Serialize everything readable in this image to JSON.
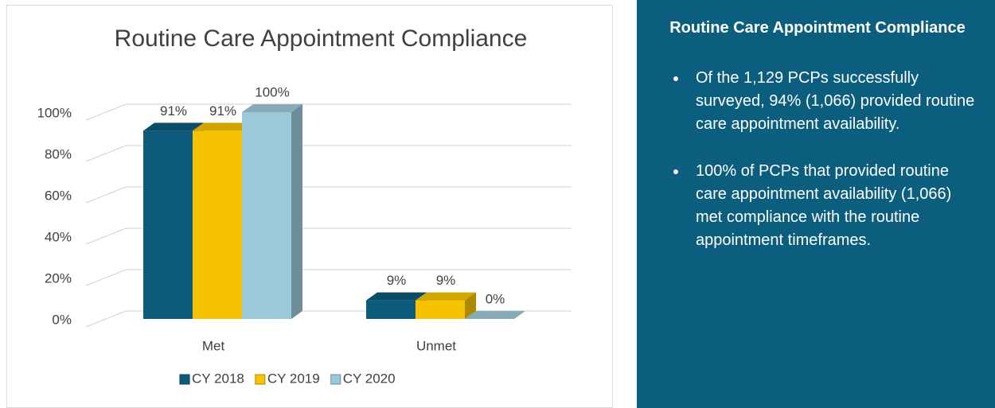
{
  "chart_data": {
    "type": "bar",
    "title": "Routine Care Appointment Compliance",
    "categories": [
      "Met",
      "Unmet"
    ],
    "series": [
      {
        "name": "CY 2018",
        "color": "#0d5a7a",
        "values": [
          91,
          9
        ],
        "value_labels": [
          "91%",
          "9%"
        ]
      },
      {
        "name": "CY 2019",
        "color": "#f7c300",
        "values": [
          91,
          9
        ],
        "value_labels": [
          "91%",
          "9%"
        ]
      },
      {
        "name": "CY 2020",
        "color": "#9cc9d9",
        "values": [
          100,
          0
        ],
        "value_labels": [
          "100%",
          "0%"
        ]
      }
    ],
    "ylim": [
      0,
      100
    ],
    "yticks": [
      {
        "value": 0,
        "label": "0%"
      },
      {
        "value": 20,
        "label": "20%"
      },
      {
        "value": 40,
        "label": "40%"
      },
      {
        "value": 60,
        "label": "60%"
      },
      {
        "value": 80,
        "label": "80%"
      },
      {
        "value": 100,
        "label": "100%"
      }
    ],
    "grid": true,
    "legend": "bottom"
  },
  "panel": {
    "title": "Routine Care Appointment Compliance",
    "bullets": [
      "Of the 1,129 PCPs successfully surveyed, 94% (1,066) provided routine care appointment availability.",
      "100% of PCPs that provided routine care appointment availability (1,066) met compliance with the routine appointment timeframes."
    ]
  }
}
